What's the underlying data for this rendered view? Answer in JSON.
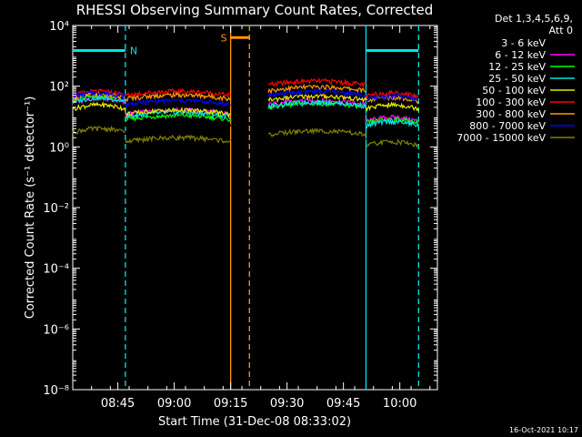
{
  "chart_data": {
    "type": "line",
    "title": "RHESSI Observing Summary Count Rates, Corrected",
    "xlabel": "Start Time (31-Dec-08 08:33:02)",
    "ylabel": "Corrected Count Rate (s⁻¹ detector⁻¹)",
    "y_scale": "log",
    "ylim": [
      1e-08,
      10000.0
    ],
    "xlim_minutes": [
      0,
      97
    ],
    "x_ticks": [
      {
        "label": "08:45",
        "minutes": 12
      },
      {
        "label": "09:00",
        "minutes": 27
      },
      {
        "label": "09:15",
        "minutes": 42
      },
      {
        "label": "09:30",
        "minutes": 57
      },
      {
        "label": "09:45",
        "minutes": 72
      },
      {
        "label": "10:00",
        "minutes": 87
      }
    ],
    "y_ticks": [
      {
        "label": "10⁴",
        "value": 10000.0
      },
      {
        "label": "10²",
        "value": 100.0
      },
      {
        "label": "10⁰",
        "value": 1
      },
      {
        "label": "10⁻²",
        "value": 0.01
      },
      {
        "label": "10⁻⁴",
        "value": 0.0001
      },
      {
        "label": "10⁻⁶",
        "value": 1e-06
      },
      {
        "label": "10⁻⁸",
        "value": 1e-08
      }
    ],
    "legend": {
      "header_lines": [
        "Det 1,3,4,5,6,9,",
        "Att 0"
      ],
      "placement": "right"
    },
    "segments_minutes": [
      [
        0,
        14
      ],
      [
        14,
        42
      ],
      [
        52,
        78
      ],
      [
        78,
        92
      ]
    ],
    "series": [
      {
        "name": "3 - 6 keV",
        "color": "#000000",
        "levels": [
          25,
          5,
          12,
          2
        ]
      },
      {
        "name": "6 - 12 keV",
        "color": "#ff00ff",
        "levels": [
          30,
          12,
          25,
          7
        ]
      },
      {
        "name": "12 - 25 keV",
        "color": "#00ff00",
        "levels": [
          35,
          8,
          20,
          6
        ]
      },
      {
        "name": "25 - 50 keV",
        "color": "#00e5e5",
        "levels": [
          30,
          10,
          22,
          5
        ]
      },
      {
        "name": "50 - 100 keV",
        "color": "#e6e600",
        "levels": [
          18,
          12,
          35,
          18
        ]
      },
      {
        "name": "100 - 300 keV",
        "color": "#ff0000",
        "levels": [
          50,
          50,
          110,
          45
        ]
      },
      {
        "name": "300 - 800 keV",
        "color": "#ff9900",
        "levels": [
          40,
          38,
          70,
          32
        ]
      },
      {
        "name": "800 - 7000 keV",
        "color": "#0000ff",
        "levels": [
          45,
          25,
          50,
          35
        ]
      },
      {
        "name": "7000 - 15000 keV",
        "color": "#808000",
        "levels": [
          3,
          1.5,
          2.5,
          1.1
        ]
      }
    ],
    "annotations": [
      {
        "text": "N",
        "color": "#00e5e5",
        "bar_minutes": [
          0,
          14
        ],
        "level": 1500
      },
      {
        "text": "S",
        "color": "#ff9900",
        "bar_minutes": [
          42,
          47
        ],
        "level": 4000
      },
      {
        "text": "",
        "color": "#00e5e5",
        "bar_minutes": [
          78,
          92
        ],
        "level": 1500
      }
    ],
    "vertical_lines": [
      {
        "minutes": 14,
        "color": "#00e5e5",
        "style": "dashed"
      },
      {
        "minutes": 42,
        "color": "#ff9900",
        "style": "solid"
      },
      {
        "minutes": 47,
        "color": "#ff9900",
        "style": "dashed"
      },
      {
        "minutes": 78,
        "color": "#00e5e5",
        "style": "solid"
      },
      {
        "minutes": 92,
        "color": "#00e5e5",
        "style": "dashed"
      }
    ],
    "grid": false
  },
  "footer": {
    "timestamp": "16-Oct-2021 10:17"
  }
}
